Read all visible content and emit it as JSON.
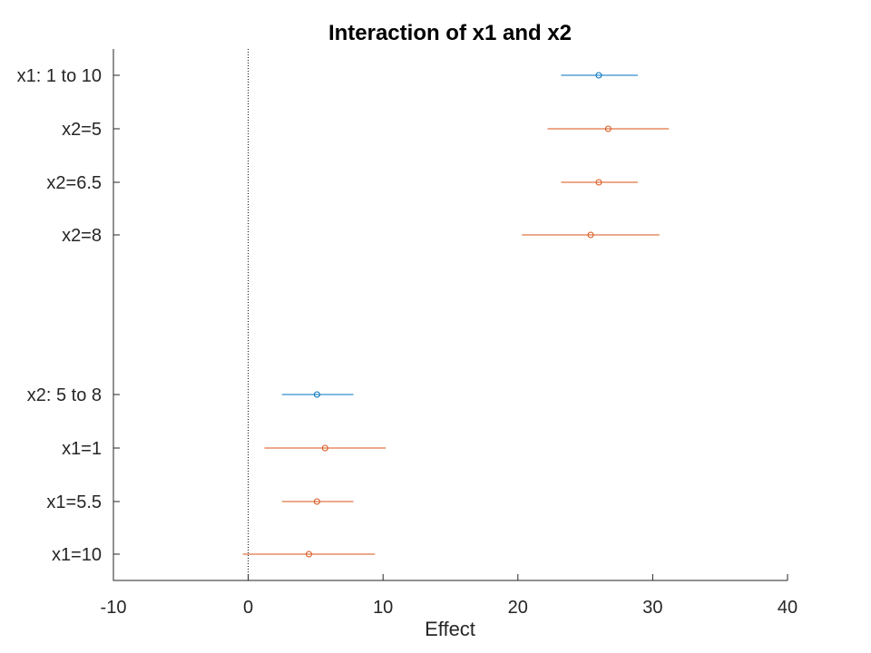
{
  "chart_data": {
    "type": "scatter",
    "title": "Interaction of x1 and x2",
    "xlabel": "Effect",
    "ylabel": "",
    "xlim": [
      -10,
      40
    ],
    "xticks": [
      -10,
      0,
      10,
      20,
      30,
      40
    ],
    "xtick_labels": [
      "-10",
      "0",
      "10",
      "20",
      "30",
      "40"
    ],
    "reference_line": {
      "x": 0,
      "style": "dotted"
    },
    "grid": false,
    "colors": {
      "main_effect": "#0072BD",
      "conditional": "#D95319",
      "axis": "#262626",
      "reference": "#000000"
    },
    "rows": [
      {
        "label": "x1: 1 to 10",
        "estimate": 26.0,
        "lower": 23.2,
        "upper": 28.9,
        "series": "main_effect"
      },
      {
        "label": "x2=5",
        "estimate": 26.7,
        "lower": 22.2,
        "upper": 31.2,
        "series": "conditional"
      },
      {
        "label": "x2=6.5",
        "estimate": 26.0,
        "lower": 23.2,
        "upper": 28.9,
        "series": "conditional"
      },
      {
        "label": "x2=8",
        "estimate": 25.4,
        "lower": 20.3,
        "upper": 30.5,
        "series": "conditional"
      },
      {
        "label": "x2: 5 to 8",
        "estimate": 5.1,
        "lower": 2.5,
        "upper": 7.8,
        "series": "main_effect"
      },
      {
        "label": "x1=1",
        "estimate": 5.7,
        "lower": 1.2,
        "upper": 10.2,
        "series": "conditional"
      },
      {
        "label": "x1=5.5",
        "estimate": 5.1,
        "lower": 2.5,
        "upper": 7.8,
        "series": "conditional"
      },
      {
        "label": "x1=10",
        "estimate": 4.5,
        "lower": -0.4,
        "upper": 9.4,
        "series": "conditional"
      }
    ]
  }
}
